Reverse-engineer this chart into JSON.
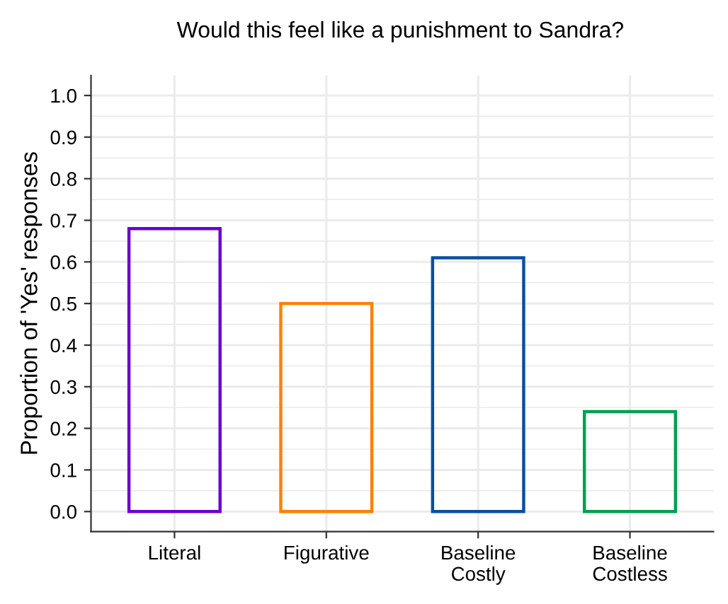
{
  "chart_data": {
    "type": "bar",
    "title": "Would this feel like a punishment to Sandra?",
    "ylabel": "Proportion of 'Yes' responses",
    "categories": [
      "Literal",
      "Figurative",
      "Baseline\nCostly",
      "Baseline\nCostless"
    ],
    "values": [
      0.68,
      0.5,
      0.61,
      0.24
    ],
    "colors": [
      "#6a00d0",
      "#ff8000",
      "#0a4f9e",
      "#00a050"
    ],
    "ylim": [
      -0.048,
      1.048
    ],
    "yticks": [
      {
        "value": 0,
        "label": "0.0"
      },
      0.1,
      0.2,
      0.3,
      0.4,
      0.5,
      0.6,
      0.7,
      0.8,
      0.9,
      {
        "value": 1,
        "label": "1.0"
      }
    ],
    "grid": true,
    "legend": false
  }
}
